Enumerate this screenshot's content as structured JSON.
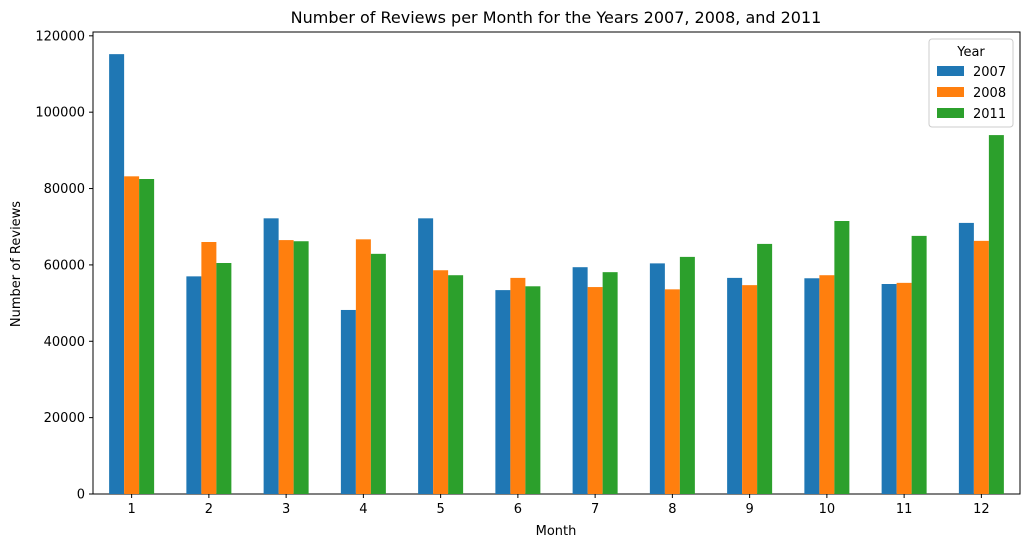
{
  "chart_data": {
    "type": "bar",
    "title": "Number of Reviews per Month for the Years 2007, 2008, and 2011",
    "xlabel": "Month",
    "ylabel": "Number of Reviews",
    "categories": [
      "1",
      "2",
      "3",
      "4",
      "5",
      "6",
      "7",
      "8",
      "9",
      "10",
      "11",
      "12"
    ],
    "ylim": [
      0,
      121000
    ],
    "yticks": [
      0,
      20000,
      40000,
      60000,
      80000,
      100000,
      120000
    ],
    "grid": false,
    "legend": {
      "title": "Year",
      "placement": "top-right"
    },
    "series": [
      {
        "name": "2007",
        "color": "#1f77b4",
        "values": [
          115200,
          57000,
          72200,
          48200,
          72200,
          53400,
          59400,
          60400,
          56600,
          56500,
          55000,
          71000
        ]
      },
      {
        "name": "2008",
        "color": "#ff7f0e",
        "values": [
          83200,
          66000,
          66500,
          66700,
          58600,
          56600,
          54200,
          53600,
          54700,
          57300,
          55300,
          66300
        ]
      },
      {
        "name": "2011",
        "color": "#2ca02c",
        "values": [
          82500,
          60500,
          66200,
          62900,
          57300,
          54400,
          58100,
          62100,
          65500,
          71500,
          67600,
          94000
        ]
      }
    ]
  }
}
